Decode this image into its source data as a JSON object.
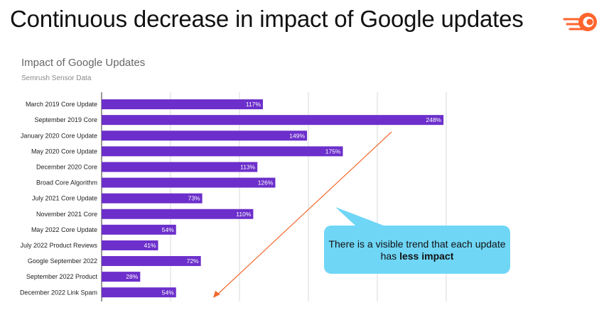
{
  "header": {
    "title": "Continuous decrease in impact of Google updates",
    "logo_icon": "semrush-logo-icon",
    "logo_color": "#ff642d"
  },
  "chart_data": {
    "type": "bar",
    "orientation": "horizontal",
    "title": "Impact of Google Updates",
    "subtitle": "Semrush Sensor Data",
    "categories": [
      "March 2019 Core Update",
      "September 2019 Core",
      "January 2020 Core Update",
      "May 2020 Core Update",
      "December 2020 Core",
      "Broad Core Algorithm",
      "July 2021 Core Update",
      "November 2021 Core",
      "May 2022 Core Update",
      "July 2022 Product Reviews",
      "Google September 2022",
      "September 2022 Product",
      "December 2022 Link Spam"
    ],
    "values": [
      117,
      248,
      149,
      175,
      113,
      126,
      73,
      110,
      54,
      41,
      72,
      28,
      54
    ],
    "value_labels": [
      "117%",
      "248%",
      "149%",
      "175%",
      "113%",
      "126%",
      "73%",
      "110%",
      "54%",
      "41%",
      "72%",
      "28%",
      "54%"
    ],
    "xlim": [
      0,
      250
    ],
    "grid": true,
    "bar_color": "#6c2fcb",
    "trend_arrow_color": "#f2692c"
  },
  "callout": {
    "text_before": "There is a visible trend that each update has ",
    "text_bold": "less impact",
    "color": "#6fd6f6"
  }
}
